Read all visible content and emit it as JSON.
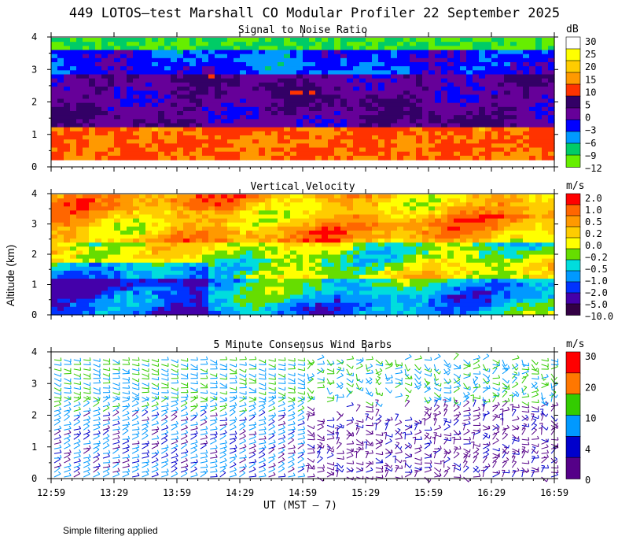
{
  "title": "449 LOTOS—test Marshall CO Modular Profiler 22 September 2025",
  "ylabel": "Altitude (km)",
  "xlabel": "UT  (MST – 7)",
  "footer": "Simple filtering applied",
  "x_ticks": [
    "12:59",
    "13:29",
    "13:59",
    "14:29",
    "14:59",
    "15:29",
    "15:59",
    "16:29",
    "16:59"
  ],
  "y_ticks": [
    "0",
    "1",
    "2",
    "3",
    "4"
  ],
  "chart_data": [
    {
      "type": "heatmap",
      "title": "Signal to Noise Ratio",
      "unit": "dB",
      "x_range": [
        "12:59",
        "16:59"
      ],
      "ylim": [
        0,
        4
      ],
      "legend_labels": [
        "30",
        "25",
        "20",
        "15",
        "10",
        "5",
        "0",
        "−3",
        "−6",
        "−9",
        "−12"
      ],
      "colors": [
        "#ffffff",
        "#ffff00",
        "#ffcc00",
        "#ff9900",
        "#ff3300",
        "#330066",
        "#660099",
        "#0000ff",
        "#0099ff",
        "#00cc66",
        "#66ee00"
      ]
    },
    {
      "type": "heatmap",
      "title": "Vertical Velocity",
      "unit": "m/s",
      "x_range": [
        "12:59",
        "16:59"
      ],
      "ylim": [
        0,
        4
      ],
      "legend_labels": [
        "2.0",
        "1.0",
        "0.5",
        "0.2",
        "0.0",
        "−0.2",
        "−0.5",
        "−1.0",
        "−2.0",
        "−5.0",
        "−10.0"
      ],
      "colors": [
        "#ff0000",
        "#ff6600",
        "#ff9900",
        "#ffcc00",
        "#ffff00",
        "#66dd00",
        "#00dddd",
        "#0099ff",
        "#0033ff",
        "#4400aa",
        "#330044"
      ]
    },
    {
      "type": "scatter",
      "title": "5 Minute Consensus Wind Barbs",
      "unit": "m/s",
      "x_range": [
        "12:59",
        "16:59"
      ],
      "ylim": [
        0,
        4
      ],
      "legend_labels": [
        "30",
        "20",
        "10",
        "4",
        "0"
      ],
      "colors": [
        "#ff0000",
        "#ff7700",
        "#33cc00",
        "#0099ff",
        "#0000cc",
        "#550088"
      ]
    }
  ]
}
